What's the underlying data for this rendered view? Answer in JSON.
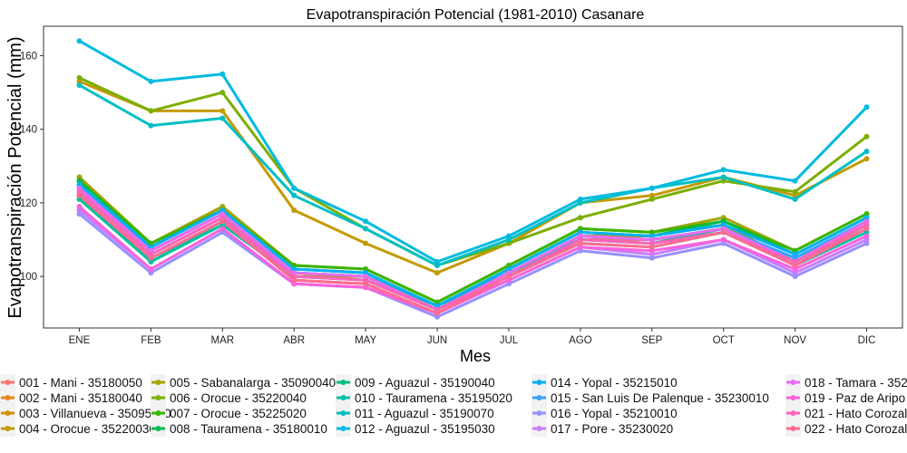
{
  "chart_data": {
    "type": "line",
    "title": "Evapotranspiración Potencial (1981-2010)  Casanare",
    "xlabel": "Mes",
    "ylabel": "Evapotranspiración  Potencial  (mm)",
    "categories": [
      "ENE",
      "FEB",
      "MAR",
      "ABR",
      "MAY",
      "JUN",
      "JUL",
      "AGO",
      "SEP",
      "OCT",
      "NOV",
      "DIC"
    ],
    "ylim": [
      86,
      168
    ],
    "yticks": [
      100,
      120,
      140,
      160
    ],
    "grid": false,
    "legend_position": "bottom",
    "series": [
      {
        "name": "001 - Mani - 35180050",
        "color": "#F8766D",
        "values": [
          123,
          106,
          116,
          99,
          98,
          90,
          100,
          110,
          110,
          113,
          103,
          114
        ]
      },
      {
        "name": "002 - Mani - 35180040",
        "color": "#E7861B",
        "values": [
          124,
          107,
          117,
          100,
          99,
          91,
          101,
          111,
          110,
          113,
          104,
          115
        ]
      },
      {
        "name": "003 - Villanueva - 35095110",
        "color": "#D39200",
        "values": [
          125,
          107,
          117,
          100,
          100,
          91,
          101,
          111,
          111,
          114,
          104,
          115
        ]
      },
      {
        "name": "004 - Orocue - 35220030",
        "color": "#C49A00",
        "values": [
          153,
          145,
          145,
          118,
          109,
          101,
          109,
          120,
          122,
          127,
          122,
          132
        ]
      },
      {
        "name": "005 - Sabanalarga - 35090040",
        "color": "#A3A500",
        "values": [
          127,
          109,
          119,
          103,
          102,
          93,
          103,
          113,
          112,
          116,
          107,
          117
        ]
      },
      {
        "name": "006 - Orocue - 35220040",
        "color": "#7CAE00",
        "values": [
          154,
          145,
          150,
          124,
          113,
          103,
          109,
          116,
          121,
          126,
          123,
          138
        ]
      },
      {
        "name": "007 - Orocue - 35225020",
        "color": "#39B600",
        "values": [
          126,
          109,
          118,
          103,
          102,
          93,
          103,
          113,
          112,
          115,
          107,
          117
        ]
      },
      {
        "name": "008 - Tauramena - 35180010",
        "color": "#00BB4E",
        "values": [
          126,
          108,
          118,
          102,
          101,
          92,
          102,
          112,
          111,
          115,
          106,
          116
        ]
      },
      {
        "name": "009 - Aguazul - 35190040",
        "color": "#00BF7D",
        "values": [
          122,
          104,
          115,
          101,
          100,
          92,
          101,
          110,
          109,
          113,
          104,
          114
        ]
      },
      {
        "name": "010 - Tauramena - 35195020",
        "color": "#00C1A3",
        "values": [
          121,
          104,
          114,
          100,
          99,
          91,
          100,
          109,
          108,
          112,
          103,
          112
        ]
      },
      {
        "name": "011 - Aguazul - 35190070",
        "color": "#00BFC4",
        "values": [
          152,
          141,
          143,
          122,
          113,
          103,
          110,
          120,
          124,
          127,
          121,
          134
        ]
      },
      {
        "name": "012 - Aguazul - 35195030",
        "color": "#00BAE0",
        "values": [
          164,
          153,
          155,
          124,
          115,
          104,
          111,
          121,
          124,
          129,
          126,
          146
        ]
      },
      {
        "name": "014 - Yopal - 35215010",
        "color": "#00B0F6",
        "values": [
          125,
          108,
          118,
          102,
          101,
          92,
          102,
          112,
          111,
          114,
          106,
          116
        ]
      },
      {
        "name": "015 - San Luis De Palenque - 35230010",
        "color": "#35A2FF",
        "values": [
          124,
          107,
          117,
          101,
          100,
          91,
          101,
          111,
          110,
          113,
          105,
          115
        ]
      },
      {
        "name": "016 - Yopal - 35210010",
        "color": "#9590FF",
        "values": [
          117,
          101,
          112,
          98,
          97,
          89,
          98,
          107,
          105,
          109,
          100,
          109
        ]
      },
      {
        "name": "017 - Pore - 35230020",
        "color": "#C77CFF",
        "values": [
          118,
          102,
          113,
          98,
          97,
          90,
          99,
          108,
          106,
          110,
          101,
          110
        ]
      },
      {
        "name": "018 - Tamara - 352",
        "color": "#E76BF3",
        "values": [
          124,
          107,
          117,
          101,
          100,
          91,
          101,
          111,
          110,
          113,
          104,
          115
        ]
      },
      {
        "name": "019 - Paz de Aripo",
        "color": "#FA62DB",
        "values": [
          119,
          102,
          113,
          98,
          97,
          90,
          99,
          108,
          107,
          110,
          102,
          111
        ]
      },
      {
        "name": "021 - Hato Corozal",
        "color": "#FF62BC",
        "values": [
          123,
          106,
          116,
          100,
          99,
          91,
          100,
          110,
          109,
          112,
          104,
          114
        ]
      },
      {
        "name": "022 - Hato Corozal",
        "color": "#FF6C91",
        "values": [
          122,
          105,
          115,
          99,
          98,
          90,
          100,
          109,
          108,
          112,
          103,
          113
        ]
      }
    ]
  }
}
